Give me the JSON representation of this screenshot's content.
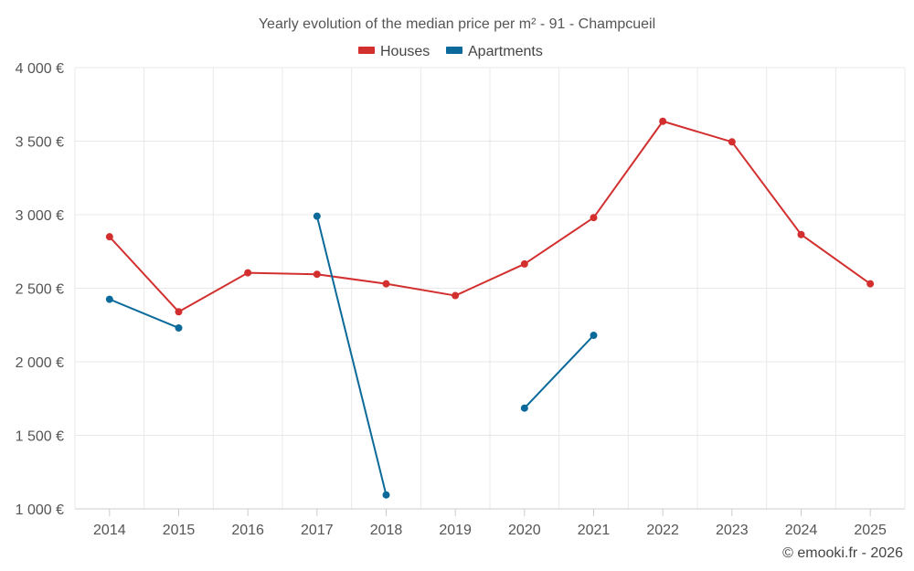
{
  "chart_data": {
    "type": "line",
    "title": "Yearly evolution of the median price per m² - 91 - Champcueil",
    "categories": [
      "2014",
      "2015",
      "2016",
      "2017",
      "2018",
      "2019",
      "2020",
      "2021",
      "2022",
      "2023",
      "2024",
      "2025"
    ],
    "series": [
      {
        "name": "Houses",
        "color": "#d32f2f",
        "values": [
          2850,
          2340,
          2605,
          2595,
          2530,
          2450,
          2665,
          2980,
          3635,
          3495,
          2865,
          2530
        ]
      },
      {
        "name": "Apartments",
        "color": "#0b6a9a",
        "values": [
          2425,
          2230,
          null,
          2990,
          1095,
          null,
          1685,
          2180,
          null,
          null,
          null,
          null
        ]
      }
    ],
    "ylim": [
      1000,
      4000
    ],
    "yticks": [
      1000,
      1500,
      2000,
      2500,
      3000,
      3500,
      4000
    ],
    "ytick_labels": [
      "1 000 €",
      "1 500 €",
      "2 000 €",
      "2 500 €",
      "3 000 €",
      "3 500 €",
      "4 000 €"
    ],
    "xlabel": "",
    "ylabel": "",
    "grid": true,
    "legend": "top-center"
  },
  "credit": "© emooki.fr - 2026"
}
